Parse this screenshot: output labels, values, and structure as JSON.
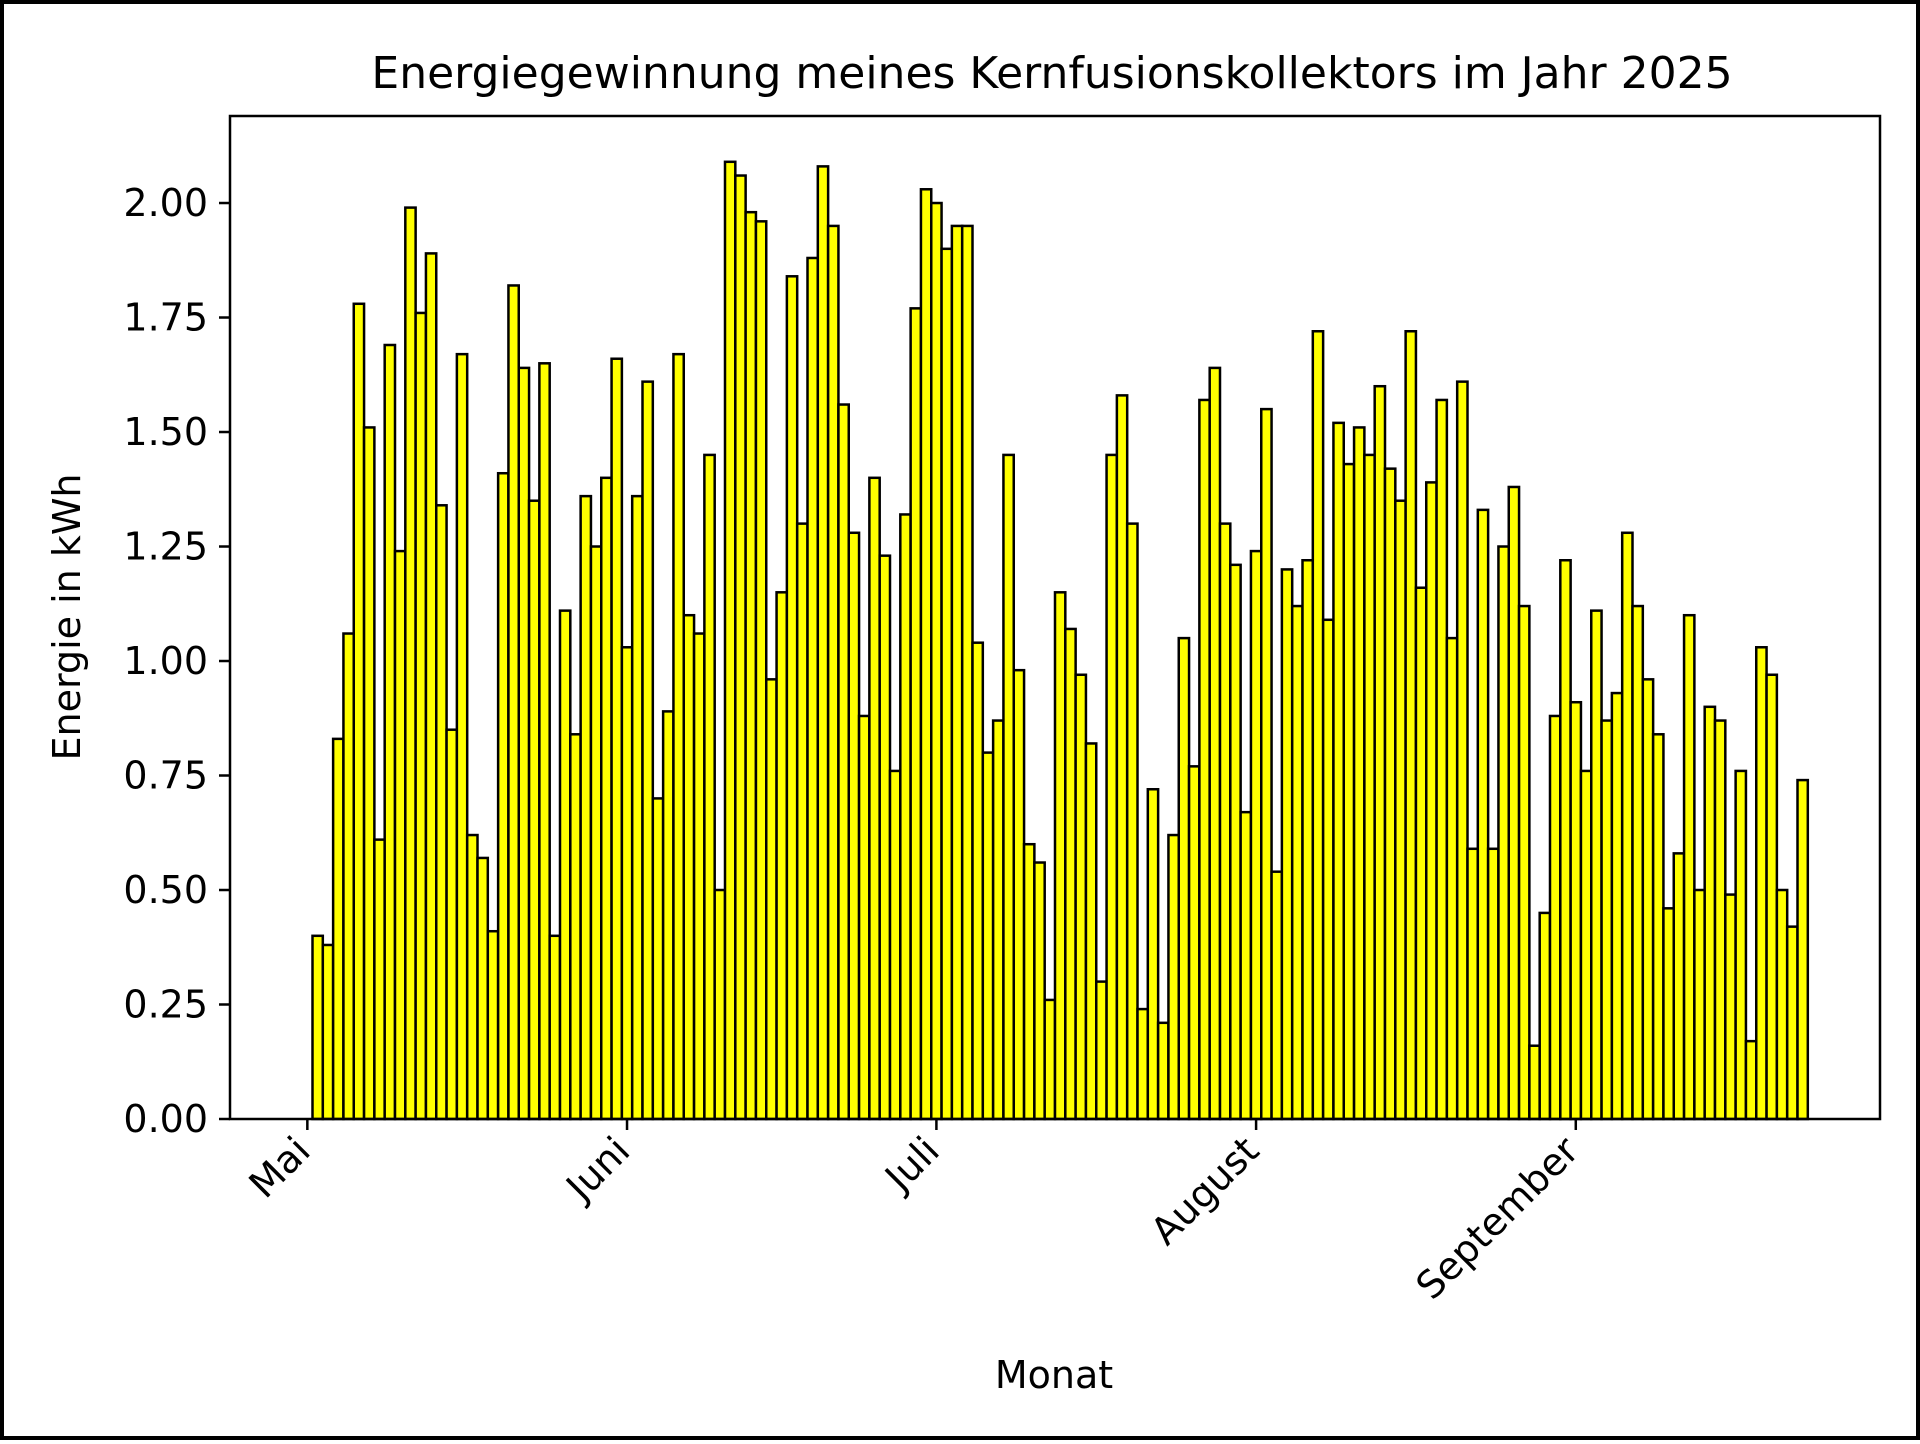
{
  "chart_data": {
    "type": "bar",
    "title": "Energiegewinnung meines Kernfusionskollektors im Jahr 2025",
    "xlabel": "Monat",
    "ylabel": "Energie in kWh",
    "ylim": [
      0,
      2.19
    ],
    "yticks": [
      0,
      0.25,
      0.5,
      0.75,
      1.0,
      1.25,
      1.5,
      1.75,
      2.0
    ],
    "ytick_labels": [
      "0.00",
      "0.25",
      "0.50",
      "0.75",
      "1.00",
      "1.25",
      "1.50",
      "1.75",
      "2.00"
    ],
    "xticks": [
      {
        "label": "Mai",
        "day": 0
      },
      {
        "label": "Juni",
        "day": 31
      },
      {
        "label": "Juli",
        "day": 61
      },
      {
        "label": "August",
        "day": 92
      },
      {
        "label": "September",
        "day": 123
      }
    ],
    "xlim": [
      -7.5,
      152.5
    ],
    "bar_color": "#ffff00",
    "edge_color": "#000000",
    "start_date": "2025-05-01",
    "values": [
      0.0,
      0.4,
      0.38,
      0.83,
      1.06,
      1.78,
      1.51,
      0.61,
      1.69,
      1.24,
      1.99,
      1.76,
      1.89,
      1.34,
      0.85,
      1.67,
      0.62,
      0.57,
      0.41,
      1.41,
      1.82,
      1.64,
      1.35,
      1.65,
      0.4,
      1.11,
      0.84,
      1.36,
      1.25,
      1.4,
      1.66,
      1.03,
      1.36,
      1.61,
      0.7,
      0.89,
      1.67,
      1.1,
      1.06,
      1.45,
      0.5,
      2.09,
      2.06,
      1.98,
      1.96,
      0.96,
      1.15,
      1.84,
      1.3,
      1.88,
      2.08,
      1.95,
      1.56,
      1.28,
      0.88,
      1.4,
      1.23,
      0.76,
      1.32,
      1.77,
      2.03,
      2.0,
      1.9,
      1.95,
      1.95,
      1.04,
      0.8,
      0.87,
      1.45,
      0.98,
      0.6,
      0.56,
      0.26,
      1.15,
      1.07,
      0.97,
      0.82,
      0.3,
      1.45,
      1.58,
      1.3,
      0.24,
      0.72,
      0.21,
      0.62,
      1.05,
      0.77,
      1.57,
      1.64,
      1.3,
      1.21,
      0.67,
      1.24,
      1.55,
      0.54,
      1.2,
      1.12,
      1.22,
      1.72,
      1.09,
      1.52,
      1.43,
      1.51,
      1.45,
      1.6,
      1.42,
      1.35,
      1.72,
      1.16,
      1.39,
      1.57,
      1.05,
      1.61,
      0.59,
      1.33,
      0.59,
      1.25,
      1.38,
      1.12,
      0.16,
      0.45,
      0.88,
      1.22,
      0.91,
      0.76,
      1.11,
      0.87,
      0.93,
      1.28,
      1.12,
      0.96,
      0.84,
      0.46,
      0.58,
      1.1,
      0.5,
      0.9,
      0.87,
      0.49,
      0.76,
      0.17,
      1.03,
      0.97,
      0.5,
      0.42,
      0.74
    ]
  }
}
